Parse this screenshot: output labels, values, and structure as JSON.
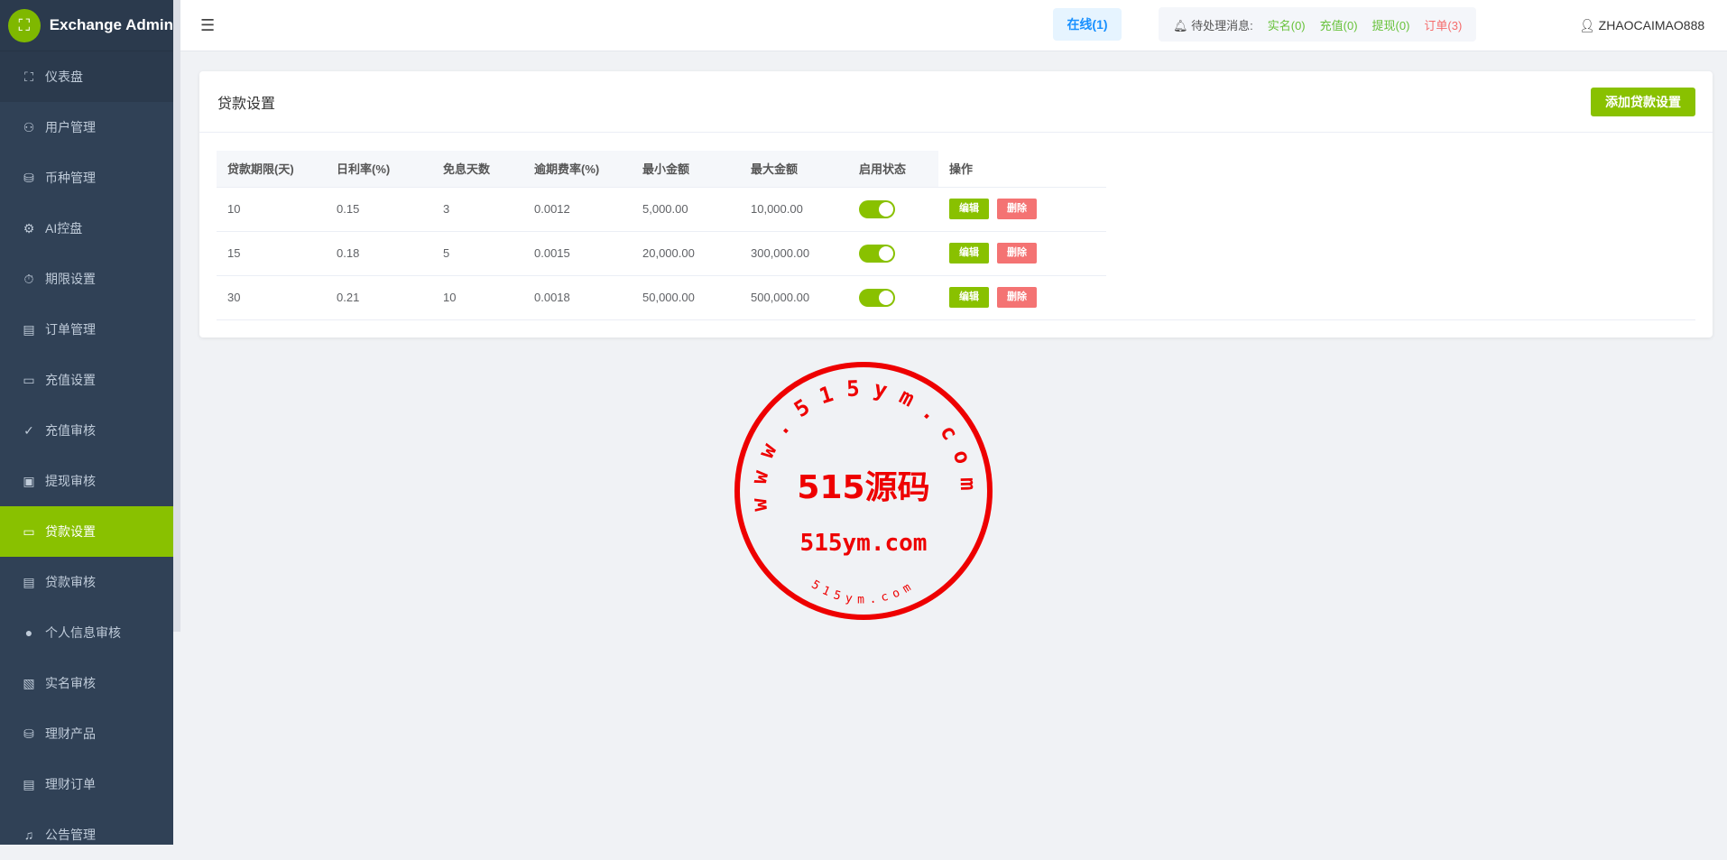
{
  "app": {
    "title": "Exchange Admin"
  },
  "sidebar": {
    "items": [
      {
        "label": "仪表盘",
        "icon": "presentation-icon"
      },
      {
        "label": "用户管理",
        "icon": "user-icon"
      },
      {
        "label": "币种管理",
        "icon": "database-icon"
      },
      {
        "label": "AI控盘",
        "icon": "gear-icon"
      },
      {
        "label": "期限设置",
        "icon": "timer-icon"
      },
      {
        "label": "订单管理",
        "icon": "document-icon"
      },
      {
        "label": "充值设置",
        "icon": "wallet-icon"
      },
      {
        "label": "充值审核",
        "icon": "check-icon"
      },
      {
        "label": "提现审核",
        "icon": "money-icon"
      },
      {
        "label": "贷款设置",
        "icon": "folder-icon",
        "active": true
      },
      {
        "label": "贷款审核",
        "icon": "document-icon"
      },
      {
        "label": "个人信息审核",
        "icon": "person-icon"
      },
      {
        "label": "实名审核",
        "icon": "document-check-icon"
      },
      {
        "label": "理财产品",
        "icon": "database-icon"
      },
      {
        "label": "理财订单",
        "icon": "document-icon"
      },
      {
        "label": "公告管理",
        "icon": "bell-icon"
      }
    ]
  },
  "header": {
    "online": "在线(1)",
    "pending_label": "待处理消息:",
    "pending": [
      {
        "label": "实名(0)",
        "color": "#67c23a"
      },
      {
        "label": "充值(0)",
        "color": "#67c23a"
      },
      {
        "label": "提现(0)",
        "color": "#67c23a"
      },
      {
        "label": "订单(3)",
        "color": "#f56c6c"
      }
    ],
    "user": "ZHAOCAIMAO888"
  },
  "card": {
    "title": "贷款设置",
    "add_button": "添加贷款设置"
  },
  "table": {
    "columns": [
      "贷款期限(天)",
      "日利率(%)",
      "免息天数",
      "逾期费率(%)",
      "最小金额",
      "最大金额",
      "启用状态",
      "操作"
    ],
    "rows": [
      [
        "10",
        "0.15",
        "3",
        "0.0012",
        "5,000.00",
        "10,000.00"
      ],
      [
        "15",
        "0.18",
        "5",
        "0.0015",
        "20,000.00",
        "300,000.00"
      ],
      [
        "30",
        "0.21",
        "10",
        "0.0018",
        "50,000.00",
        "500,000.00"
      ]
    ],
    "enabled": [
      true,
      true,
      true
    ],
    "edit_label": "编辑",
    "delete_label": "删除"
  },
  "watermark": {
    "ring": "www.515ym.com",
    "center": "515源码",
    "domain": "515ym.com",
    "small": "515ym.com",
    "color": "#ee0000"
  },
  "colors": {
    "accent": "#89c100",
    "sidebar": "#304156"
  }
}
